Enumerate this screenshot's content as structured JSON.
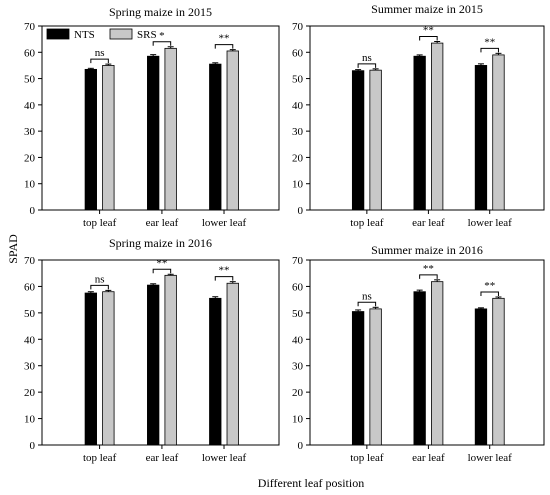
{
  "figure": {
    "ylabel": "SPAD",
    "xlabel": "Different leaf position"
  },
  "legend": {
    "entries": [
      {
        "name": "NTS",
        "color": "#000000"
      },
      {
        "name": "SRS",
        "color": "#c8c8c8"
      }
    ],
    "placement": "top-left of first panel"
  },
  "chart_data": [
    {
      "type": "bar",
      "title": "Spring maize in 2015",
      "categories": [
        "top leaf",
        "ear leaf",
        "lower  leaf"
      ],
      "series": [
        {
          "name": "NTS",
          "values": [
            53.5,
            58.5,
            55.5
          ],
          "errors": [
            0.4,
            0.6,
            0.5
          ]
        },
        {
          "name": "SRS",
          "values": [
            55.0,
            61.5,
            60.5
          ],
          "errors": [
            0.5,
            0.6,
            0.5
          ]
        }
      ],
      "significance": [
        "ns",
        "*",
        "**"
      ],
      "ylim": [
        0,
        70
      ],
      "yticks": [
        0,
        10,
        20,
        30,
        40,
        50,
        60,
        70
      ],
      "grid": false
    },
    {
      "type": "bar",
      "title": "Summer maize in 2015",
      "categories": [
        "top leaf",
        "ear leaf",
        "lower  leaf"
      ],
      "series": [
        {
          "name": "NTS",
          "values": [
            53.0,
            58.5,
            55.0
          ],
          "errors": [
            0.4,
            0.5,
            0.6
          ]
        },
        {
          "name": "SRS",
          "values": [
            53.2,
            63.5,
            59.0
          ],
          "errors": [
            0.5,
            0.6,
            0.6
          ]
        }
      ],
      "significance": [
        "ns",
        "**",
        "**"
      ],
      "ylim": [
        0,
        70
      ],
      "yticks": [
        0,
        10,
        20,
        30,
        40,
        50,
        60,
        70
      ],
      "grid": false
    },
    {
      "type": "bar",
      "title": "Spring maize in 2016",
      "categories": [
        "top leaf",
        "ear leaf",
        "lower  leaf"
      ],
      "series": [
        {
          "name": "NTS",
          "values": [
            57.5,
            60.5,
            55.5
          ],
          "errors": [
            0.5,
            0.5,
            0.6
          ]
        },
        {
          "name": "SRS",
          "values": [
            58.0,
            64.2,
            61.2
          ],
          "errors": [
            0.5,
            0.4,
            0.6
          ]
        }
      ],
      "significance": [
        "ns",
        "**",
        "**"
      ],
      "ylim": [
        0,
        70
      ],
      "yticks": [
        0,
        10,
        20,
        30,
        40,
        50,
        60,
        70
      ],
      "grid": false
    },
    {
      "type": "bar",
      "title": "Summer maize in 2016",
      "categories": [
        "top leaf",
        "ear leaf",
        "lower  leaf"
      ],
      "series": [
        {
          "name": "NTS",
          "values": [
            50.5,
            58.0,
            51.5
          ],
          "errors": [
            0.6,
            0.6,
            0.4
          ]
        },
        {
          "name": "SRS",
          "values": [
            51.5,
            61.8,
            55.5
          ],
          "errors": [
            0.6,
            0.7,
            0.5
          ]
        }
      ],
      "significance": [
        "ns",
        "**",
        "**"
      ],
      "ylim": [
        0,
        70
      ],
      "yticks": [
        0,
        10,
        20,
        30,
        40,
        50,
        60,
        70
      ],
      "grid": false
    }
  ]
}
